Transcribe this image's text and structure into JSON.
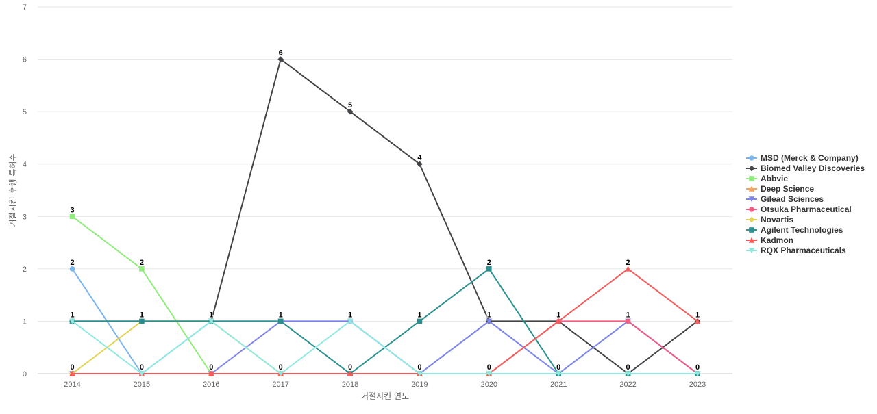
{
  "chart_data": {
    "type": "line",
    "title": "",
    "xlabel": "거절시킨 연도",
    "ylabel": "거절시킨 후행 특허수",
    "categories": [
      "2014",
      "2015",
      "2016",
      "2017",
      "2018",
      "2019",
      "2020",
      "2021",
      "2022",
      "2023"
    ],
    "ylim": [
      0,
      7
    ],
    "yticks": [
      0,
      1,
      2,
      3,
      4,
      5,
      6,
      7
    ],
    "grid": true,
    "legend_position": "right",
    "data_labels": true,
    "series": [
      {
        "name": "MSD (Merck & Company)",
        "color": "#7cb5ec",
        "marker": "circle",
        "values": [
          2,
          0,
          1,
          1,
          1,
          0,
          1,
          0,
          1,
          0
        ]
      },
      {
        "name": "Biomed Valley Discoveries",
        "color": "#434348",
        "marker": "diamond",
        "values": [
          1,
          1,
          1,
          6,
          5,
          4,
          1,
          1,
          0,
          1
        ]
      },
      {
        "name": "Abbvie",
        "color": "#90ed7d",
        "marker": "square",
        "values": [
          3,
          2,
          0,
          0,
          0,
          0,
          0,
          0,
          0,
          0
        ]
      },
      {
        "name": "Deep Science",
        "color": "#f7a35c",
        "marker": "triangle",
        "values": [
          0,
          0,
          0,
          0,
          0,
          0,
          0,
          0,
          0,
          0
        ]
      },
      {
        "name": "Gilead Sciences",
        "color": "#8085e9",
        "marker": "triangle-down",
        "values": [
          0,
          0,
          0,
          1,
          1,
          0,
          1,
          0,
          1,
          0
        ]
      },
      {
        "name": "Otsuka Pharmaceutical",
        "color": "#f15c80",
        "marker": "circle",
        "values": [
          0,
          0,
          0,
          0,
          0,
          0,
          0,
          1,
          1,
          0
        ]
      },
      {
        "name": "Novartis",
        "color": "#e4d354",
        "marker": "diamond",
        "values": [
          0,
          1,
          1,
          0,
          0,
          0,
          0,
          0,
          0,
          0
        ]
      },
      {
        "name": "Agilent Technologies",
        "color": "#2b908f",
        "marker": "square",
        "values": [
          1,
          1,
          1,
          1,
          0,
          1,
          2,
          0,
          0,
          0
        ]
      },
      {
        "name": "Kadmon",
        "color": "#f45b5b",
        "marker": "triangle",
        "values": [
          0,
          0,
          0,
          0,
          0,
          0,
          0,
          1,
          2,
          1
        ]
      },
      {
        "name": "RQX Pharmaceuticals",
        "color": "#91e8e1",
        "marker": "triangle-down",
        "values": [
          1,
          0,
          1,
          0,
          1,
          0,
          0,
          0,
          0,
          0
        ]
      }
    ],
    "point_labels": [
      {
        "x": "2014",
        "y": 3,
        "text": "3"
      },
      {
        "x": "2014",
        "y": 2,
        "text": "2"
      },
      {
        "x": "2014",
        "y": 1,
        "text": "1"
      },
      {
        "x": "2014",
        "y": 0,
        "text": "0"
      },
      {
        "x": "2015",
        "y": 2,
        "text": "2"
      },
      {
        "x": "2015",
        "y": 1,
        "text": "1"
      },
      {
        "x": "2015",
        "y": 0,
        "text": "0"
      },
      {
        "x": "2016",
        "y": 1,
        "text": "1"
      },
      {
        "x": "2016",
        "y": 0,
        "text": "0"
      },
      {
        "x": "2017",
        "y": 6,
        "text": "6"
      },
      {
        "x": "2017",
        "y": 1,
        "text": "1"
      },
      {
        "x": "2017",
        "y": 0,
        "text": "0"
      },
      {
        "x": "2018",
        "y": 5,
        "text": "5"
      },
      {
        "x": "2018",
        "y": 1,
        "text": "1"
      },
      {
        "x": "2018",
        "y": 0,
        "text": "0"
      },
      {
        "x": "2019",
        "y": 4,
        "text": "4"
      },
      {
        "x": "2019",
        "y": 1,
        "text": "1"
      },
      {
        "x": "2019",
        "y": 0,
        "text": "0"
      },
      {
        "x": "2020",
        "y": 2,
        "text": "2"
      },
      {
        "x": "2020",
        "y": 1,
        "text": "1"
      },
      {
        "x": "2020",
        "y": 0,
        "text": "0"
      },
      {
        "x": "2021",
        "y": 1,
        "text": "1"
      },
      {
        "x": "2021",
        "y": 0,
        "text": "0"
      },
      {
        "x": "2022",
        "y": 2,
        "text": "2"
      },
      {
        "x": "2022",
        "y": 1,
        "text": "1"
      },
      {
        "x": "2022",
        "y": 0,
        "text": "0"
      },
      {
        "x": "2023",
        "y": 1,
        "text": "1"
      },
      {
        "x": "2023",
        "y": 0,
        "text": "0"
      }
    ]
  }
}
